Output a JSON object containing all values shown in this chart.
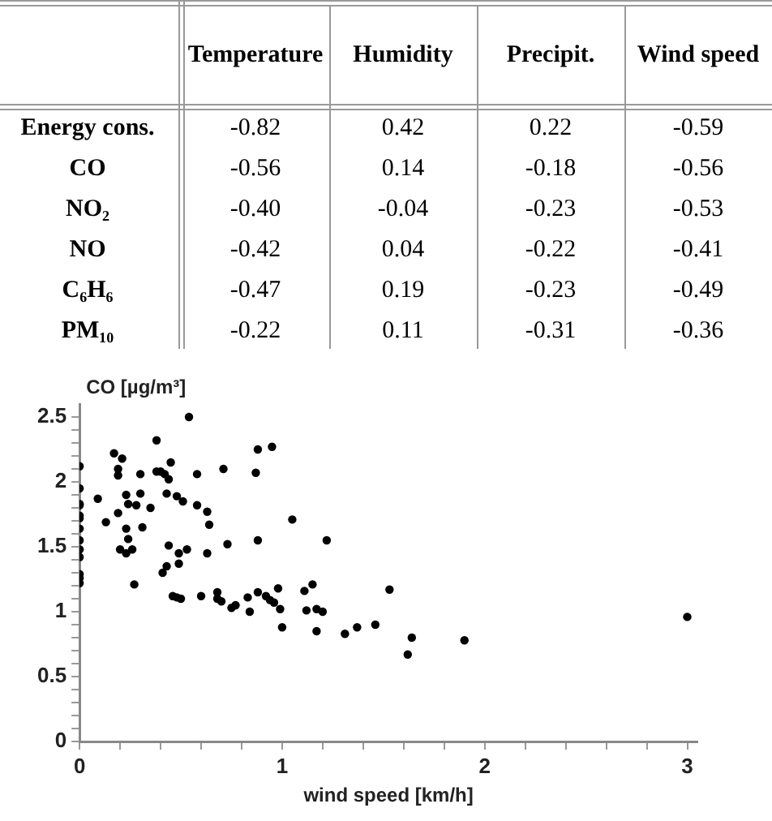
{
  "chart_data": [
    {
      "type": "heatmap",
      "categories": [
        "Temperature",
        "Humidity",
        "Precipit.",
        "Wind speed"
      ],
      "y_categories": [
        "Energy cons.",
        "CO",
        "NO₂",
        "NO",
        "C₆H₆",
        "PM₁₀"
      ],
      "cells": [
        [
          -0.82,
          0.42,
          0.22,
          -0.59
        ],
        [
          -0.56,
          0.14,
          -0.18,
          -0.56
        ],
        [
          -0.4,
          -0.04,
          -0.23,
          -0.53
        ],
        [
          -0.42,
          0.04,
          -0.22,
          -0.41
        ],
        [
          -0.47,
          0.19,
          -0.23,
          -0.49
        ],
        [
          -0.22,
          0.11,
          -0.31,
          -0.36
        ]
      ],
      "data_labels": true,
      "cell_labels": [
        [
          "-0.82",
          "0.42",
          "0.22",
          "-0.59"
        ],
        [
          "-0.56",
          "0.14",
          "-0.18",
          "-0.56"
        ],
        [
          "-0.40",
          "-0.04",
          "-0.23",
          "-0.53"
        ],
        [
          "-0.42",
          "0.04",
          "-0.22",
          "-0.41"
        ],
        [
          "-0.47",
          "0.19",
          "-0.23",
          "-0.49"
        ],
        [
          "-0.22",
          "0.11",
          "-0.31",
          "-0.36"
        ]
      ]
    },
    {
      "type": "scatter",
      "xlabel": "wind speed [km/h]",
      "ylabel": "CO [µg/m³]",
      "marker": "circle",
      "grid": false,
      "legend": false,
      "xlim": [
        0,
        3.05
      ],
      "ylim": [
        0,
        2.6
      ],
      "xticks": [
        0,
        {
          "value": 0.2,
          "label": null
        },
        {
          "value": 0.4,
          "label": null
        },
        {
          "value": 0.6,
          "label": null
        },
        {
          "value": 0.8,
          "label": null
        },
        1,
        {
          "value": 1.2,
          "label": null
        },
        {
          "value": 1.4,
          "label": null
        },
        {
          "value": 1.6,
          "label": null
        },
        {
          "value": 1.8,
          "label": null
        },
        2,
        {
          "value": 2.2,
          "label": null
        },
        {
          "value": 2.4,
          "label": null
        },
        {
          "value": 2.6,
          "label": null
        },
        {
          "value": 2.8,
          "label": null
        },
        3
      ],
      "yticks": [
        0,
        {
          "value": 0.1,
          "label": null
        },
        {
          "value": 0.2,
          "label": null
        },
        {
          "value": 0.3,
          "label": null
        },
        {
          "value": 0.4,
          "label": null
        },
        0.5,
        {
          "value": 0.6,
          "label": null
        },
        {
          "value": 0.7,
          "label": null
        },
        {
          "value": 0.8,
          "label": null
        },
        {
          "value": 0.9,
          "label": null
        },
        1,
        {
          "value": 1.1,
          "label": null
        },
        {
          "value": 1.2,
          "label": null
        },
        {
          "value": 1.3,
          "label": null
        },
        {
          "value": 1.4,
          "label": null
        },
        1.5,
        {
          "value": 1.6,
          "label": null
        },
        {
          "value": 1.7,
          "label": null
        },
        {
          "value": 1.8,
          "label": null
        },
        {
          "value": 1.9,
          "label": null
        },
        2,
        {
          "value": 2.1,
          "label": null
        },
        {
          "value": 2.2,
          "label": null
        },
        {
          "value": 2.3,
          "label": null
        },
        {
          "value": 2.4,
          "label": null
        },
        2.5
      ],
      "series": [
        {
          "color": "#000000",
          "x": [
            0,
            0,
            0,
            0,
            0,
            0,
            0,
            0,
            0,
            0,
            0,
            0,
            0,
            0.09,
            0.13,
            0.17,
            0.19,
            0.19,
            0.21,
            0.23,
            0.19,
            0.2,
            0.23,
            0.24,
            0.23,
            0.24,
            0.26,
            0.27,
            0.28,
            0.3,
            0.3,
            0.31,
            0.35,
            0.38,
            0.38,
            0.4,
            0.42,
            0.43,
            0.44,
            0.45,
            0.41,
            0.43,
            0.44,
            0.46,
            0.48,
            0.49,
            0.49,
            0.5,
            0.48,
            0.51,
            0.53,
            0.54,
            0.58,
            0.58,
            0.6,
            0.63,
            0.64,
            0.63,
            0.68,
            0.68,
            0.71,
            0.73,
            0.7,
            0.75,
            0.77,
            0.83,
            0.84,
            0.88,
            0.87,
            0.88,
            0.88,
            0.92,
            0.94,
            0.96,
            0.95,
            0.98,
            0.99,
            1.0,
            1.05,
            1.11,
            1.12,
            1.15,
            1.17,
            1.17,
            1.2,
            1.22,
            1.31,
            1.37,
            1.46,
            1.53,
            1.62,
            1.64,
            1.9,
            3.0
          ],
          "values": [
            2.12,
            1.95,
            1.83,
            1.82,
            1.74,
            1.72,
            1.64,
            1.55,
            1.48,
            1.42,
            1.29,
            1.26,
            1.22,
            1.87,
            1.69,
            2.22,
            2.1,
            2.05,
            2.18,
            1.9,
            1.76,
            1.48,
            1.45,
            1.56,
            1.64,
            1.83,
            1.48,
            1.21,
            1.82,
            2.06,
            1.91,
            1.65,
            1.8,
            2.32,
            2.08,
            2.08,
            2.06,
            1.91,
            2.02,
            2.15,
            1.3,
            1.35,
            1.51,
            1.12,
            1.11,
            1.45,
            1.37,
            1.1,
            1.89,
            1.85,
            1.48,
            2.5,
            1.82,
            2.06,
            1.12,
            1.77,
            1.67,
            1.45,
            1.15,
            1.1,
            2.1,
            1.52,
            1.08,
            1.03,
            1.05,
            1.11,
            1.0,
            2.25,
            2.07,
            1.55,
            1.15,
            1.12,
            1.09,
            1.07,
            2.27,
            1.18,
            1.02,
            0.88,
            1.71,
            1.16,
            1.01,
            1.21,
            1.02,
            0.85,
            1.0,
            1.55,
            0.83,
            0.88,
            0.9,
            1.17,
            0.67,
            0.8,
            0.78,
            0.96
          ]
        }
      ]
    }
  ]
}
